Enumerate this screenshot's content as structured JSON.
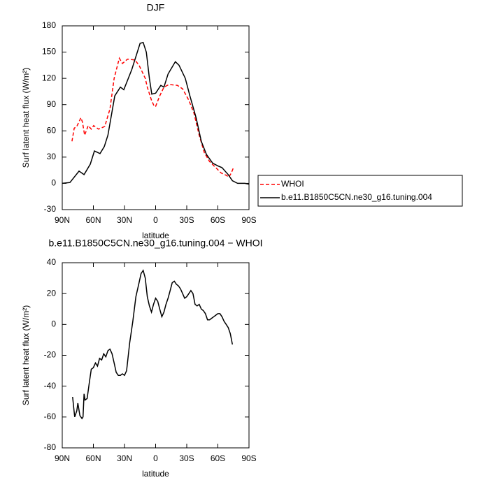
{
  "chart_data": [
    {
      "type": "line",
      "title": "DJF",
      "xlabel": "latitude",
      "ylabel": "Surf latent heat flux (W/m²)",
      "xlim": [
        90,
        -90
      ],
      "ylim": [
        -30,
        180
      ],
      "xticks": [
        {
          "value": 90,
          "label": "90N"
        },
        {
          "value": 60,
          "label": "60N"
        },
        {
          "value": 30,
          "label": "30N"
        },
        0,
        {
          "value": -30,
          "label": "30S"
        },
        {
          "value": -60,
          "label": "60S"
        },
        {
          "value": -90,
          "label": "90S"
        }
      ],
      "yticks": [
        -30,
        0,
        30,
        60,
        90,
        120,
        150,
        180
      ],
      "legend": "right",
      "series": [
        {
          "name": "WHOI",
          "color": "#ff0000",
          "linestyle": "dashed",
          "x": [
            80.6,
            78.5,
            76,
            72,
            70.5,
            68.4,
            65,
            62,
            59.7,
            55,
            49,
            44,
            40,
            35,
            32,
            27,
            20,
            16,
            10,
            8,
            4,
            1.3,
            0,
            -4,
            -8,
            -13,
            -21,
            -26,
            -32,
            -37,
            -42,
            -47,
            -52,
            -58,
            -63,
            -68.5,
            -70.5,
            -73,
            -75
          ],
          "values": [
            48,
            63,
            65,
            75,
            70,
            55,
            66,
            62,
            66,
            62,
            65,
            85,
            120,
            143,
            137,
            142,
            141,
            135,
            120,
            110,
            95,
            88,
            88,
            100,
            110,
            113,
            112,
            108,
            95,
            80,
            55,
            35,
            25,
            18,
            12,
            9,
            7,
            12,
            18
          ]
        },
        {
          "name": "b.e11.B1850C5CN.ne30_g16.tuning.004",
          "color": "#000000",
          "linestyle": "solid",
          "x": [
            90,
            82.6,
            73.8,
            69,
            63,
            59,
            53.6,
            49.5,
            46,
            39.4,
            34,
            30.7,
            23,
            15,
            12,
            9,
            6,
            3.7,
            0,
            -5,
            -8,
            -12,
            -19,
            -22.6,
            -28.6,
            -33,
            -39,
            -44,
            -49,
            -55,
            -60,
            -64,
            -70,
            -74,
            -79,
            -86,
            -90
          ],
          "values": [
            0,
            1,
            14,
            10,
            22,
            37,
            34,
            42,
            55,
            100,
            110,
            107,
            130,
            160,
            161,
            150,
            120,
            102,
            103,
            112,
            110,
            125,
            139,
            135,
            120,
            100,
            75,
            48,
            33,
            23,
            20,
            18,
            10,
            3,
            0,
            0,
            -1
          ]
        }
      ]
    },
    {
      "type": "line",
      "title": "b.e11.B1850C5CN.ne30_g16.tuning.004 − WHOI",
      "xlabel": "latitude",
      "ylabel": "Surf latent heat flux (W/m²)",
      "xlim": [
        90,
        -90
      ],
      "ylim": [
        -80,
        40
      ],
      "xticks": [
        {
          "value": 90,
          "label": "90N"
        },
        {
          "value": 60,
          "label": "60N"
        },
        {
          "value": 30,
          "label": "30N"
        },
        0,
        {
          "value": -30,
          "label": "30S"
        },
        {
          "value": -60,
          "label": "60S"
        },
        {
          "value": -90,
          "label": "90S"
        }
      ],
      "yticks": [
        -80,
        -60,
        -40,
        -20,
        0,
        20,
        40
      ],
      "series": [
        {
          "color": "#000000",
          "linestyle": "solid",
          "x": [
            80,
            78,
            76,
            75,
            73,
            71,
            70,
            69,
            68,
            66,
            64,
            62,
            60,
            58,
            56,
            54,
            52,
            50,
            48,
            46,
            44,
            42,
            40,
            38,
            36,
            34,
            32,
            30,
            28,
            25,
            22,
            19,
            16,
            14,
            12,
            10,
            8,
            6,
            4,
            2,
            0,
            -2,
            -4,
            -6,
            -8,
            -10,
            -12,
            -14,
            -16,
            -18,
            -20,
            -22,
            -24,
            -26,
            -28,
            -30,
            -32,
            -34,
            -36,
            -38,
            -40,
            -42,
            -44,
            -46,
            -48,
            -50,
            -52,
            -54,
            -56,
            -58,
            -60,
            -62,
            -64,
            -66,
            -68,
            -70,
            -72,
            -74
          ],
          "values": [
            -47,
            -60,
            -56,
            -51,
            -59,
            -61,
            -60,
            -45,
            -49,
            -48,
            -38,
            -29,
            -28,
            -25,
            -27,
            -22,
            -23,
            -19,
            -21,
            -17,
            -16,
            -19,
            -25,
            -31,
            -33,
            -33,
            -32,
            -33,
            -30,
            -12,
            2,
            18,
            27,
            33,
            35,
            30,
            18,
            12,
            8,
            13,
            17,
            15,
            10,
            5,
            8,
            13,
            17,
            22,
            27,
            28,
            26,
            25,
            23,
            20,
            17,
            18,
            20,
            22,
            20,
            13,
            12,
            13,
            10,
            9,
            7,
            3,
            3,
            4,
            5,
            6,
            7,
            7,
            5,
            2,
            0,
            -2,
            -6,
            -13
          ]
        }
      ]
    }
  ]
}
